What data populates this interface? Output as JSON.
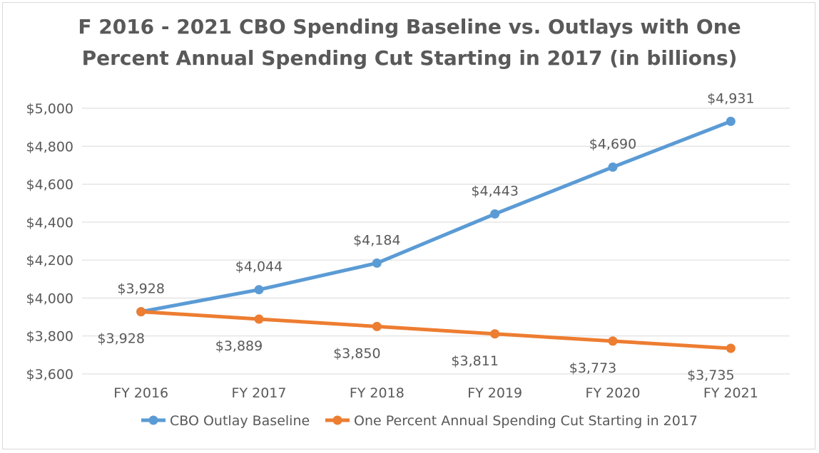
{
  "chart_data": {
    "type": "line",
    "title_lines": [
      "F 2016 - 2021 CBO Spending Baseline vs. Outlays with One",
      "Percent Annual Spending Cut Starting in 2017 (in billions)"
    ],
    "categories": [
      "FY 2016",
      "FY 2017",
      "FY 2018",
      "FY 2019",
      "FY 2020",
      "FY 2021"
    ],
    "ylim": [
      3600,
      5000
    ],
    "yticks": [
      3600,
      3800,
      4000,
      4200,
      4400,
      4600,
      4800,
      5000
    ],
    "ytick_labels": [
      "$3,600",
      "$3,800",
      "$4,000",
      "$4,200",
      "$4,400",
      "$4,600",
      "$4,800",
      "$5,000"
    ],
    "grid": true,
    "legend_position": "bottom",
    "series": [
      {
        "name": "CBO Outlay Baseline",
        "color": "#5b9bd5",
        "values": [
          3928,
          4044,
          4184,
          4443,
          4690,
          4931
        ],
        "labels": [
          "$3,928",
          "$4,044",
          "$4,184",
          "$4,443",
          "$4,690",
          "$4,931"
        ],
        "label_position": "above"
      },
      {
        "name": "One Percent Annual Spending Cut Starting in 2017",
        "color": "#ed7d31",
        "values": [
          3928,
          3889,
          3850,
          3811,
          3773,
          3735
        ],
        "labels": [
          "$3,928",
          "$3,889",
          "$3,850",
          "$3,811",
          "$3,773",
          "$3,735"
        ],
        "label_position": "below"
      }
    ]
  }
}
